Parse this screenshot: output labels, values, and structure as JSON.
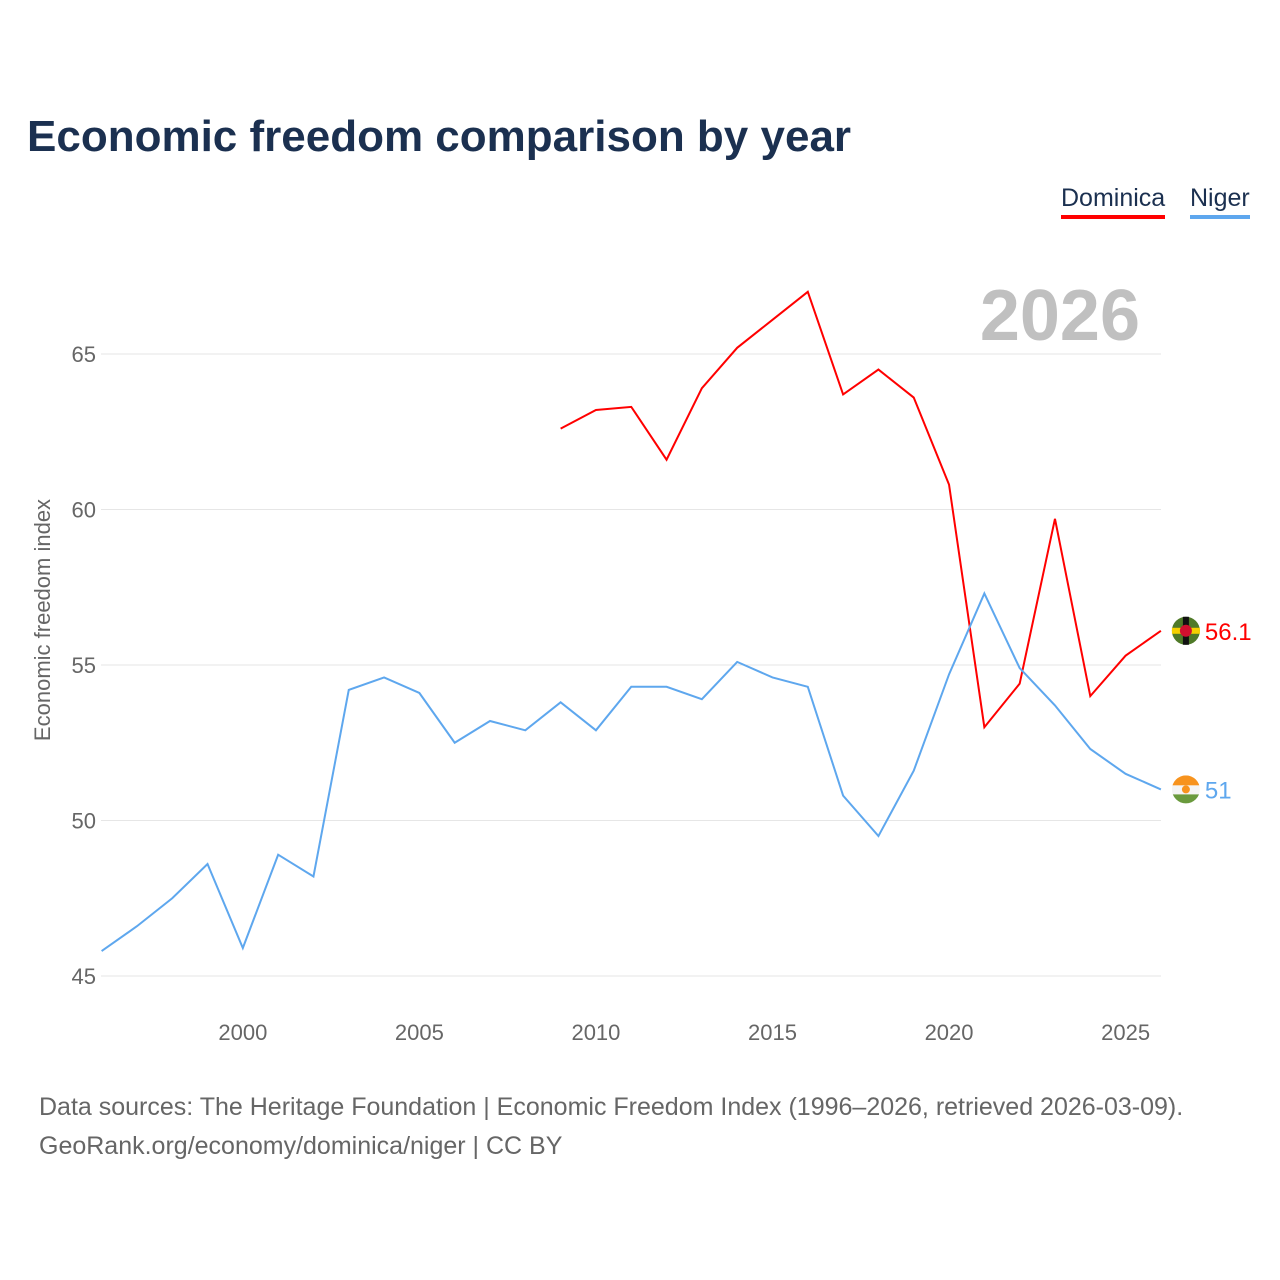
{
  "title": "Economic freedom comparison by year",
  "year_watermark": "2026",
  "source_line1": "Data sources: The Heritage Foundation | Economic Freedom Index (1996–2026, retrieved 2026-03-09).",
  "source_line2": "GeoRank.org/economy/dominica/niger | CC BY",
  "chart_data": {
    "type": "line",
    "title": "Economic freedom comparison by year",
    "xlabel": "",
    "ylabel": "Economic freedom index",
    "xlim": [
      1996,
      2026
    ],
    "ylim": [
      45,
      68.5
    ],
    "xticks": [
      2000,
      2005,
      2010,
      2015,
      2020,
      2025
    ],
    "yticks": [
      45,
      50,
      55,
      60,
      65
    ],
    "grid": true,
    "legend_placement": "top-right",
    "series": [
      {
        "name": "Dominica",
        "color": "#ff0000",
        "end_label": "56.1",
        "x": [
          2009,
          2010,
          2011,
          2012,
          2013,
          2014,
          2015,
          2016,
          2017,
          2018,
          2019,
          2020,
          2021,
          2022,
          2023,
          2024,
          2025,
          2026
        ],
        "values": [
          62.6,
          63.2,
          63.3,
          61.6,
          63.9,
          65.2,
          66.1,
          67.0,
          63.7,
          64.5,
          63.6,
          60.8,
          53.0,
          54.4,
          59.7,
          54.0,
          55.3,
          56.1
        ]
      },
      {
        "name": "Niger",
        "color": "#5ea7ee",
        "end_label": "51",
        "x": [
          1996,
          1997,
          1998,
          1999,
          2000,
          2001,
          2002,
          2003,
          2004,
          2005,
          2006,
          2007,
          2008,
          2009,
          2010,
          2011,
          2012,
          2013,
          2014,
          2015,
          2016,
          2017,
          2018,
          2019,
          2020,
          2021,
          2022,
          2023,
          2024,
          2025,
          2026
        ],
        "values": [
          45.8,
          46.6,
          47.5,
          48.6,
          45.9,
          48.9,
          48.2,
          54.2,
          54.6,
          54.1,
          52.5,
          53.2,
          52.9,
          53.8,
          52.9,
          54.3,
          54.3,
          53.9,
          55.1,
          54.6,
          54.3,
          50.8,
          49.5,
          51.6,
          54.7,
          57.3,
          54.9,
          53.7,
          52.3,
          51.5,
          51.0
        ]
      }
    ]
  }
}
